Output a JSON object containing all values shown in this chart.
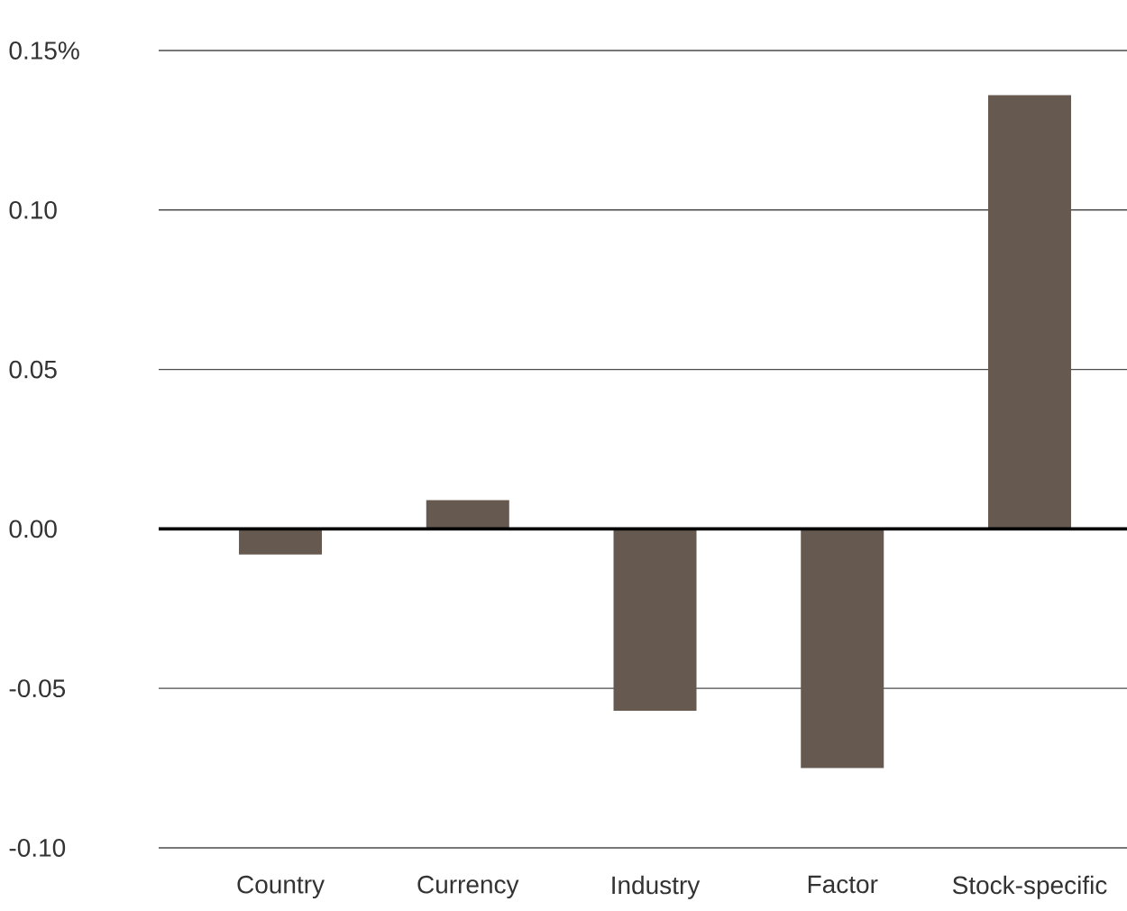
{
  "chart_data": {
    "type": "bar",
    "categories": [
      "Country",
      "Currency",
      "Industry",
      "Factor",
      "Stock-specific"
    ],
    "values": [
      -0.008,
      0.009,
      -0.057,
      -0.075,
      0.136
    ],
    "color": "#655950",
    "ylim": [
      -0.1,
      0.15
    ],
    "yticks": [
      {
        "value": -0.1,
        "label": "-0.10"
      },
      {
        "value": -0.05,
        "label": "-0.05"
      },
      {
        "value": 0,
        "label": "0.00"
      },
      {
        "value": 0.05,
        "label": "0.05"
      },
      {
        "value": 0.1,
        "label": "0.10"
      },
      {
        "value": 0.15,
        "label": "0.15%"
      }
    ],
    "grid": "y",
    "ref_lines": [
      {
        "axis": "y",
        "value": 0,
        "color": "#000000"
      }
    ]
  }
}
